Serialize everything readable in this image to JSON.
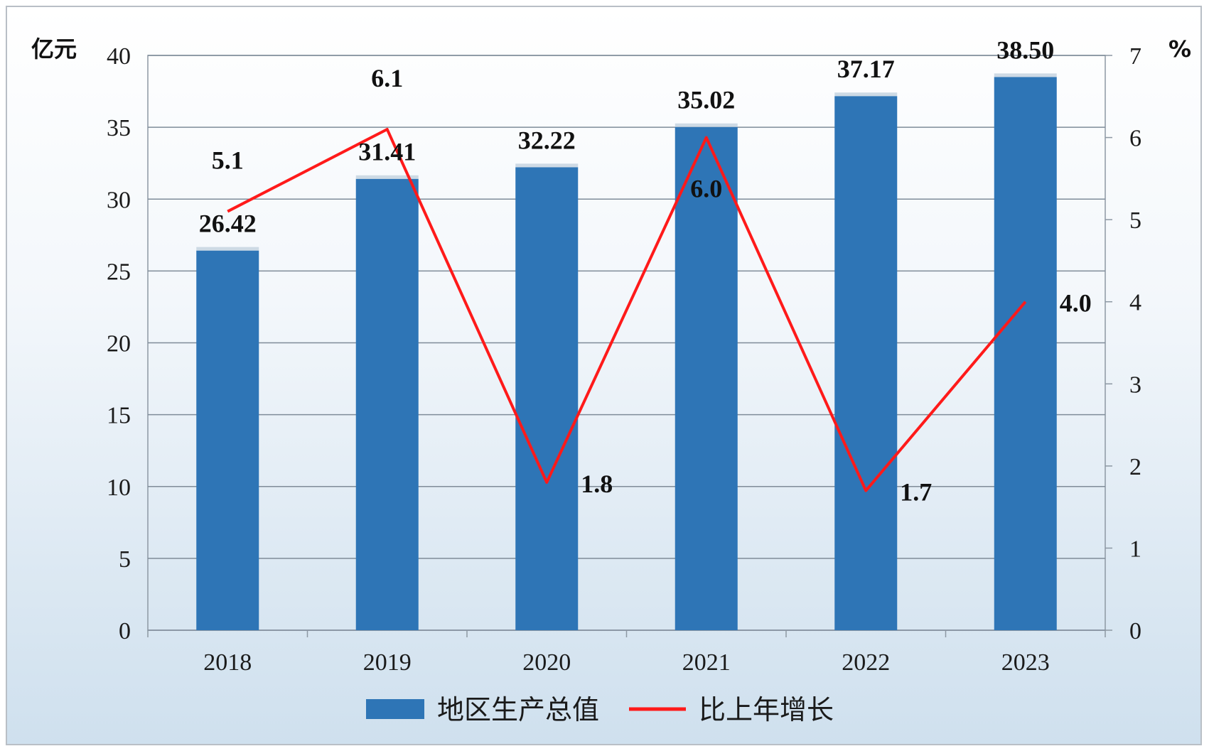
{
  "chart_data": {
    "type": "bar",
    "categories": [
      "2018",
      "2019",
      "2020",
      "2021",
      "2022",
      "2023"
    ],
    "series": [
      {
        "name": "地区生产总值",
        "type": "bar",
        "axis": "left",
        "color": "#2e75b6",
        "values": [
          26.42,
          31.41,
          32.22,
          35.02,
          37.17,
          38.5
        ],
        "labels": [
          "26.42",
          "31.41",
          "32.22",
          "35.02",
          "37.17",
          "38.50"
        ]
      },
      {
        "name": "比上年增长",
        "type": "line",
        "axis": "right",
        "color": "#ff1a1a",
        "values": [
          5.1,
          6.1,
          1.8,
          6.0,
          1.7,
          4.0
        ],
        "labels": [
          "5.1",
          "6.1",
          "1.8",
          "6.0",
          "1.7",
          "4.0"
        ]
      }
    ],
    "y_left": {
      "unit": "亿元",
      "ylim": [
        0,
        40
      ],
      "ticks": [
        "0",
        "5",
        "10",
        "15",
        "20",
        "25",
        "30",
        "35",
        "40"
      ]
    },
    "y_right": {
      "unit": "%",
      "ylim": [
        0,
        7
      ],
      "ticks": [
        "0",
        "1",
        "2",
        "3",
        "4",
        "5",
        "6",
        "7"
      ]
    },
    "grid": true,
    "legend": "bottom-center",
    "gridline_color": "#7f8c99"
  }
}
